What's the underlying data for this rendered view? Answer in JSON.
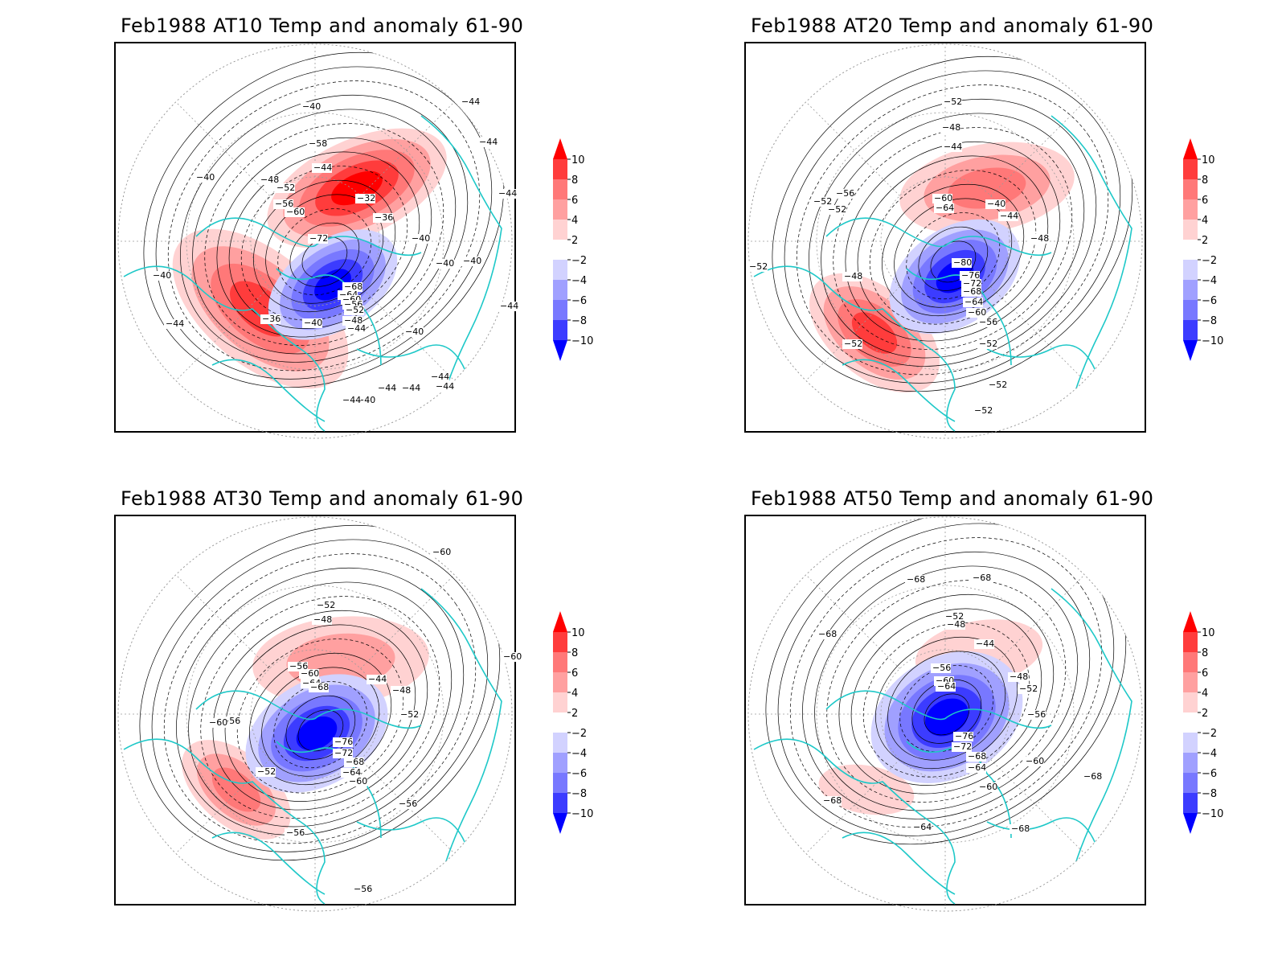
{
  "colors": {
    "coastline": "#1ec8c8",
    "contour": "#000000",
    "grid": "#9a9a9a",
    "scale": [
      "#0000ff",
      "#3c3cff",
      "#7878ff",
      "#a0a0ff",
      "#d2d2ff",
      "#ffffff",
      "#ffd2d2",
      "#ffa0a0",
      "#ff7878",
      "#ff3c3c",
      "#ff0000"
    ]
  },
  "colorbar_labels": [
    "10",
    "8",
    "6",
    "4",
    "2",
    "−2",
    "−4",
    "−6",
    "−8",
    "−10"
  ],
  "panels": [
    {
      "title": "Feb1988 AT10 Temp and anomaly 61-90",
      "contour_labels": [
        "−40",
        "−44",
        "−44",
        "−44",
        "−40",
        "−44",
        "−48",
        "−52",
        "−56",
        "−60",
        "−58",
        "−32",
        "−36",
        "−40",
        "−72",
        "−40",
        "−40",
        "−68",
        "−64",
        "−60",
        "−56",
        "−52",
        "−48",
        "−44",
        "−36",
        "−40",
        "−44",
        "−40",
        "−40",
        "−44",
        "−44",
        "−40",
        "−44",
        "−44",
        "−44",
        "−44"
      ]
    },
    {
      "title": "Feb1988 AT20 Temp and anomaly 61-90",
      "contour_labels": [
        "−52",
        "−48",
        "−44",
        "−56",
        "−60",
        "−64",
        "−52",
        "−52",
        "−40",
        "−44",
        "−48",
        "−52",
        "−48",
        "−80",
        "−76",
        "−72",
        "−68",
        "−64",
        "−60",
        "−56",
        "−52",
        "−52",
        "−52",
        "−52"
      ]
    },
    {
      "title": "Feb1988 AT30 Temp and anomaly 61-90",
      "contour_labels": [
        "−60",
        "−52",
        "−48",
        "−60",
        "−56",
        "−60",
        "−64",
        "−68",
        "−44",
        "−48",
        "−52",
        "−60",
        "−56",
        "−76",
        "−72",
        "−68",
        "−64",
        "−60",
        "−52",
        "−56",
        "−56",
        "−56",
        "−60"
      ]
    },
    {
      "title": "Feb1988 AT50 Temp and anomaly 61-90",
      "contour_labels": [
        "−68",
        "−68",
        "−68",
        "−52",
        "−48",
        "−44",
        "−56",
        "−60",
        "−64",
        "−48",
        "−52",
        "−56",
        "−76",
        "−72",
        "−68",
        "−64",
        "−60",
        "−60",
        "−68",
        "−68",
        "−64",
        "−68"
      ]
    }
  ]
}
